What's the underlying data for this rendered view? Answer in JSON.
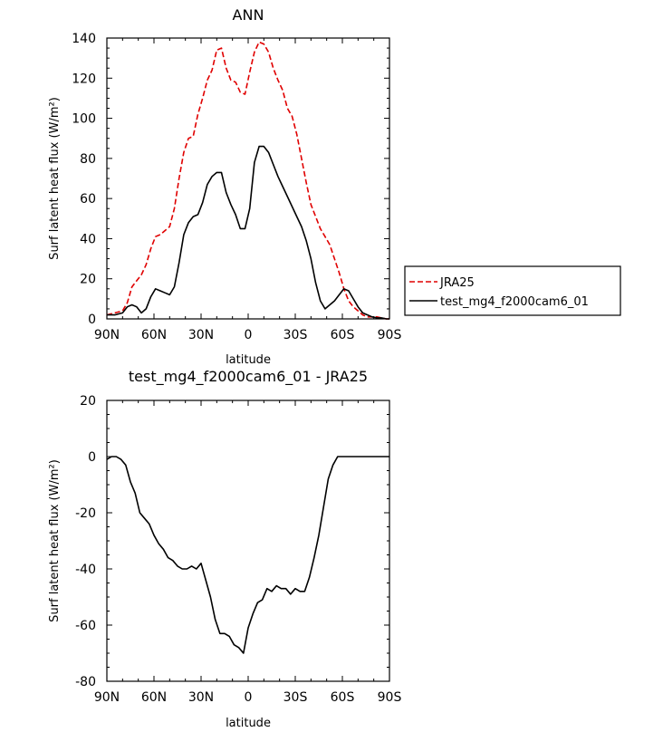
{
  "chart_data": [
    {
      "type": "line",
      "title": "ANN",
      "xlabel": "latitude",
      "ylabel": "Surf latent heat flux (W/m²)",
      "xlim": [
        90,
        -90
      ],
      "ylim": [
        0,
        140
      ],
      "xticks": [
        90,
        60,
        30,
        0,
        -30,
        -60,
        -90
      ],
      "xtick_labels": [
        "90N",
        "60N",
        "30N",
        "0",
        "30S",
        "60S",
        "90S"
      ],
      "yticks": [
        0,
        20,
        40,
        60,
        80,
        100,
        120,
        140
      ],
      "ytick_labels": [
        "0",
        "20",
        "40",
        "60",
        "80",
        "100",
        "120",
        "140"
      ],
      "legend": "outside-right",
      "series": [
        {
          "name": "JRA25",
          "color": "#e00000",
          "dash": "dashed",
          "x": [
            90,
            85,
            80,
            77,
            74,
            71,
            68,
            65,
            62,
            59,
            56,
            53,
            50,
            47,
            44,
            41,
            38,
            35,
            32,
            29,
            26,
            23,
            20,
            17,
            14,
            11,
            8,
            5,
            2,
            -1,
            -4,
            -7,
            -10,
            -13,
            -16,
            -19,
            -22,
            -25,
            -28,
            -31,
            -34,
            -37,
            -40,
            -43,
            -46,
            -49,
            -52,
            -55,
            -58,
            -61,
            -64,
            -67,
            -70,
            -73,
            -76,
            -79,
            -82,
            -85,
            -88,
            -90
          ],
          "y": [
            2,
            3,
            4,
            8,
            16,
            19,
            22,
            27,
            35,
            41,
            42,
            44,
            46,
            55,
            70,
            83,
            90,
            91,
            102,
            110,
            119,
            124,
            134,
            135,
            125,
            119,
            118,
            113,
            112,
            123,
            133,
            138,
            137,
            133,
            125,
            119,
            114,
            105,
            101,
            92,
            80,
            68,
            57,
            51,
            45,
            41,
            37,
            30,
            23,
            15,
            9,
            6,
            4,
            2,
            1,
            1,
            1,
            0.5,
            0,
            0
          ]
        },
        {
          "name": "test_mg4_f2000cam6_01",
          "color": "#000000",
          "dash": "solid",
          "x": [
            90,
            85,
            80,
            77,
            74,
            71,
            68,
            65,
            62,
            59,
            56,
            53,
            50,
            47,
            44,
            41,
            38,
            35,
            32,
            29,
            26,
            23,
            20,
            17,
            14,
            11,
            8,
            5,
            2,
            -1,
            -4,
            -7,
            -10,
            -13,
            -16,
            -19,
            -22,
            -25,
            -28,
            -31,
            -34,
            -37,
            -40,
            -43,
            -46,
            -49,
            -52,
            -55,
            -58,
            -61,
            -64,
            -67,
            -70,
            -73,
            -76,
            -79,
            -82,
            -85,
            -88,
            -90
          ],
          "y": [
            2,
            2,
            3,
            6,
            7,
            6,
            3,
            5,
            11,
            15,
            14,
            13,
            12,
            16,
            28,
            42,
            48,
            51,
            52,
            58,
            67,
            71,
            73,
            73,
            63,
            57,
            52,
            45,
            45,
            55,
            78,
            86,
            86,
            83,
            77,
            71,
            66,
            61,
            56,
            51,
            46,
            39,
            30,
            18,
            9,
            5,
            7,
            9,
            12,
            15,
            14,
            10,
            6,
            3,
            2,
            1,
            0.5,
            0.5,
            0,
            0
          ]
        }
      ]
    },
    {
      "type": "line",
      "title": "test_mg4_f2000cam6_01 - JRA25",
      "xlabel": "latitude",
      "ylabel": "Surf latent heat flux (W/m²)",
      "xlim": [
        90,
        -90
      ],
      "ylim": [
        -80,
        20
      ],
      "xticks": [
        90,
        60,
        30,
        0,
        -30,
        -60,
        -90
      ],
      "xtick_labels": [
        "90N",
        "60N",
        "30N",
        "0",
        "30S",
        "60S",
        "90S"
      ],
      "yticks": [
        -80,
        -60,
        -40,
        -20,
        0,
        20
      ],
      "ytick_labels": [
        "-80",
        "-60",
        "-40",
        "-20",
        "0",
        "20"
      ],
      "series": [
        {
          "color": "#000000",
          "dash": "solid",
          "x": [
            90,
            87,
            84,
            81,
            78,
            75,
            72,
            69,
            66,
            63,
            60,
            57,
            54,
            51,
            48,
            45,
            42,
            39,
            36,
            33,
            30,
            27,
            24,
            21,
            18,
            15,
            12,
            9,
            6,
            3,
            0,
            -3,
            -6,
            -9,
            -12,
            -15,
            -18,
            -21,
            -24,
            -27,
            -30,
            -33,
            -36,
            -39,
            -42,
            -45,
            -48,
            -51,
            -54,
            -57,
            -60,
            -63,
            -66,
            -69,
            -72,
            -75,
            -78,
            -81,
            -84,
            -87,
            -90
          ],
          "y": [
            -1,
            0,
            0,
            -1,
            -3,
            -9,
            -13,
            -20,
            -22,
            -24,
            -28,
            -31,
            -33,
            -36,
            -37,
            -39,
            -40,
            -40,
            -39,
            -40,
            -38,
            -44,
            -50,
            -58,
            -63,
            -63,
            -64,
            -67,
            -68,
            -70,
            -61,
            -56,
            -52,
            -51,
            -47,
            -48,
            -46,
            -47,
            -47,
            -49,
            -47,
            -48,
            -48,
            -43,
            -36,
            -28,
            -18,
            -8,
            -3,
            0,
            0,
            0,
            0,
            0,
            0,
            0,
            0,
            0,
            0,
            0,
            0
          ]
        }
      ]
    }
  ]
}
